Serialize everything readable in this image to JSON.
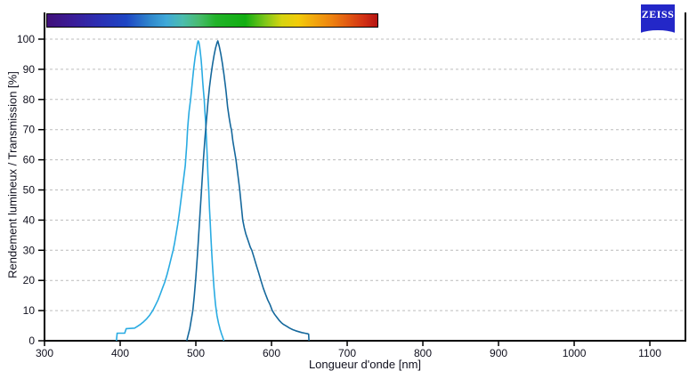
{
  "brand": {
    "name": "ZEISS",
    "color": "#2327c8"
  },
  "chart_data": {
    "type": "line",
    "title": "",
    "xlabel": "Longueur d'onde [nm]",
    "ylabel": "Rendement lumineux / Transmission [%]",
    "xlim": [
      300,
      1147
    ],
    "ylim": [
      0,
      100
    ],
    "x_ticks": [
      300,
      400,
      500,
      600,
      700,
      800,
      900,
      1000,
      1100
    ],
    "y_ticks": [
      0,
      10,
      20,
      30,
      40,
      50,
      60,
      70,
      80,
      90,
      100
    ],
    "grid": "horizontal-dashed",
    "grid_color": "#bcbcbc",
    "axis_color": "#000000",
    "legend": "none",
    "series": [
      {
        "name": "light-blue-curve",
        "color": "#29abe2",
        "points": [
          [
            395,
            0
          ],
          [
            396,
            2.5
          ],
          [
            406,
            2.5
          ],
          [
            408,
            4
          ],
          [
            419,
            4.2
          ],
          [
            423,
            4.8
          ],
          [
            427,
            5.5
          ],
          [
            431,
            6.3
          ],
          [
            435,
            7.3
          ],
          [
            439,
            8.5
          ],
          [
            443,
            10
          ],
          [
            447,
            12
          ],
          [
            450,
            13.5
          ],
          [
            453,
            15.5
          ],
          [
            456,
            17.5
          ],
          [
            459,
            19.5
          ],
          [
            462,
            22
          ],
          [
            465,
            25
          ],
          [
            468,
            28
          ],
          [
            470,
            30
          ],
          [
            472,
            32.5
          ],
          [
            474,
            35.5
          ],
          [
            476,
            38.5
          ],
          [
            478,
            42
          ],
          [
            480,
            46
          ],
          [
            482,
            50
          ],
          [
            484,
            54
          ],
          [
            486,
            58
          ],
          [
            488,
            65
          ],
          [
            489,
            70
          ],
          [
            490,
            73
          ],
          [
            491,
            76
          ],
          [
            493,
            80
          ],
          [
            495,
            85
          ],
          [
            497,
            90
          ],
          [
            499,
            94
          ],
          [
            501,
            97
          ],
          [
            502,
            98.5
          ],
          [
            503,
            99.4
          ],
          [
            504,
            99
          ],
          [
            505,
            97.5
          ],
          [
            506,
            95.5
          ],
          [
            507,
            93
          ],
          [
            508,
            90
          ],
          [
            509,
            86
          ],
          [
            510,
            83
          ],
          [
            511,
            80
          ],
          [
            512,
            76
          ],
          [
            513,
            72
          ],
          [
            514,
            67
          ],
          [
            515,
            61
          ],
          [
            516,
            55
          ],
          [
            517,
            50
          ],
          [
            518,
            44
          ],
          [
            519,
            39
          ],
          [
            520,
            34
          ],
          [
            521,
            29
          ],
          [
            522,
            25
          ],
          [
            523,
            21
          ],
          [
            524,
            17.5
          ],
          [
            525,
            14.5
          ],
          [
            526,
            12
          ],
          [
            527,
            10
          ],
          [
            528,
            8.3
          ],
          [
            529,
            7
          ],
          [
            530,
            5.8
          ],
          [
            531,
            4.8
          ],
          [
            532,
            3.8
          ],
          [
            533,
            3
          ],
          [
            534,
            2.2
          ],
          [
            535,
            1.5
          ],
          [
            536,
            0.8
          ],
          [
            537,
            0
          ]
        ]
      },
      {
        "name": "dark-blue-curve",
        "color": "#15689c",
        "points": [
          [
            488,
            0
          ],
          [
            490,
            2
          ],
          [
            492,
            4
          ],
          [
            494,
            7
          ],
          [
            496,
            10
          ],
          [
            498,
            15
          ],
          [
            500,
            21
          ],
          [
            502,
            28
          ],
          [
            504,
            36
          ],
          [
            506,
            44
          ],
          [
            508,
            52
          ],
          [
            510,
            60
          ],
          [
            512,
            67
          ],
          [
            514,
            73
          ],
          [
            516,
            79
          ],
          [
            518,
            84
          ],
          [
            520,
            88
          ],
          [
            522,
            91.5
          ],
          [
            524,
            94.5
          ],
          [
            526,
            97
          ],
          [
            528,
            98.8
          ],
          [
            529,
            99.4
          ],
          [
            531,
            97.5
          ],
          [
            533,
            95
          ],
          [
            535,
            92
          ],
          [
            537,
            88.5
          ],
          [
            539,
            84.5
          ],
          [
            540,
            82.5
          ],
          [
            542,
            77.5
          ],
          [
            544,
            74
          ],
          [
            546,
            71
          ],
          [
            547,
            70
          ],
          [
            549,
            66
          ],
          [
            551,
            63
          ],
          [
            553,
            60
          ],
          [
            555,
            56
          ],
          [
            557,
            52
          ],
          [
            558,
            50
          ],
          [
            560,
            45
          ],
          [
            562,
            40
          ],
          [
            564,
            37.5
          ],
          [
            566,
            35.5
          ],
          [
            568,
            34
          ],
          [
            570,
            32.5
          ],
          [
            572,
            31
          ],
          [
            574,
            30
          ],
          [
            577,
            27.5
          ],
          [
            580,
            25
          ],
          [
            583,
            22.5
          ],
          [
            586,
            20
          ],
          [
            589,
            17.5
          ],
          [
            592,
            15.5
          ],
          [
            595,
            13.5
          ],
          [
            598,
            12
          ],
          [
            601,
            10
          ],
          [
            604,
            8.8
          ],
          [
            607,
            7.8
          ],
          [
            610,
            6.8
          ],
          [
            613,
            6
          ],
          [
            616,
            5.4
          ],
          [
            620,
            4.8
          ],
          [
            624,
            4.2
          ],
          [
            628,
            3.7
          ],
          [
            632,
            3.3
          ],
          [
            636,
            3
          ],
          [
            640,
            2.7
          ],
          [
            644,
            2.5
          ],
          [
            648,
            2.3
          ],
          [
            649,
            2.2
          ],
          [
            649.5,
            0
          ]
        ]
      }
    ],
    "spectrum_bar": {
      "x_range_nm": [
        302,
        741
      ],
      "stops": [
        {
          "pos": 0,
          "color": "#40107a"
        },
        {
          "pos": 8,
          "color": "#3a1d99"
        },
        {
          "pos": 16,
          "color": "#2b30b4"
        },
        {
          "pos": 24,
          "color": "#1e46c4"
        },
        {
          "pos": 31,
          "color": "#2f86cc"
        },
        {
          "pos": 36,
          "color": "#3fa8d8"
        },
        {
          "pos": 41,
          "color": "#4bbcae"
        },
        {
          "pos": 46,
          "color": "#48bb6e"
        },
        {
          "pos": 51,
          "color": "#22b32a"
        },
        {
          "pos": 60,
          "color": "#12ae12"
        },
        {
          "pos": 66,
          "color": "#7ec71a"
        },
        {
          "pos": 71,
          "color": "#d6d410"
        },
        {
          "pos": 76,
          "color": "#f2cc0a"
        },
        {
          "pos": 81,
          "color": "#f2a60e"
        },
        {
          "pos": 86,
          "color": "#ee8410"
        },
        {
          "pos": 91,
          "color": "#e25a12"
        },
        {
          "pos": 96,
          "color": "#d23014"
        },
        {
          "pos": 100,
          "color": "#b41412"
        }
      ]
    }
  }
}
